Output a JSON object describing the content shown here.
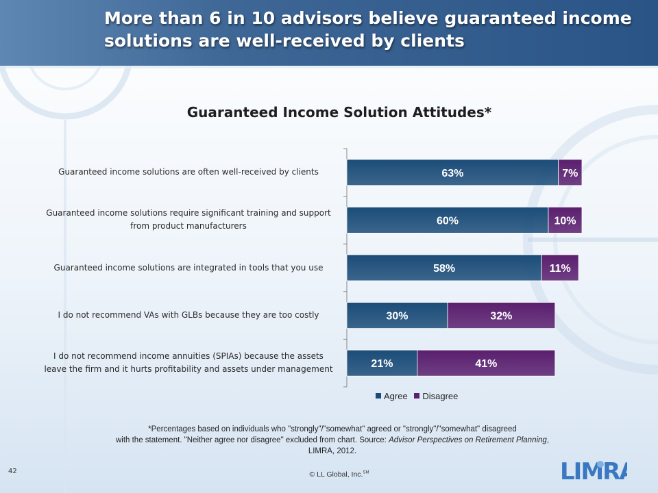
{
  "header": {
    "title": "More than 6 in 10 advisors believe guaranteed income solutions are well-received by clients"
  },
  "chart_data": {
    "type": "bar",
    "orientation": "horizontal",
    "stacked": true,
    "title": "Guaranteed Income Solution Attitudes*",
    "categories": [
      "Guaranteed income solutions are often well-received by clients",
      "Guaranteed income solutions require significant training and support from product manufacturers",
      "Guaranteed income solutions are integrated in tools that you use",
      "I do not recommend VAs with GLBs because they are too costly",
      "I do not recommend income annuities (SPIAs) because the assets leave the firm and it hurts profitability and assets under management"
    ],
    "series": [
      {
        "name": "Agree",
        "values": [
          63,
          60,
          58,
          30,
          21
        ],
        "color": "#1b4c78"
      },
      {
        "name": "Disagree",
        "values": [
          7,
          10,
          11,
          32,
          41
        ],
        "color": "#5a1f6e"
      }
    ],
    "data_labels": [
      [
        "63%",
        "60%",
        "58%",
        "30%",
        "21%"
      ],
      [
        "7%",
        "10%",
        "11%",
        "32%",
        "41%"
      ]
    ],
    "xlim": [
      0,
      70
    ],
    "grid": false,
    "legend_position": "bottom"
  },
  "footnote": {
    "line1": "*Percentages based on individuals who \"strongly\"/\"somewhat\" agreed or \"strongly\"/\"somewhat\" disagreed",
    "line2": "with the statement. \"Neither agree nor disagree\" excluded from chart. Source: ",
    "source_italic": "Advisor Perspectives on Retirement Planning",
    "source_tail": ", LIMRA, 2012."
  },
  "page_number": "42",
  "copyright": {
    "text": "© LL Global, Inc.",
    "mark": "SM"
  },
  "logo": {
    "text": "LIMRA",
    "color": "#3a78c2"
  }
}
